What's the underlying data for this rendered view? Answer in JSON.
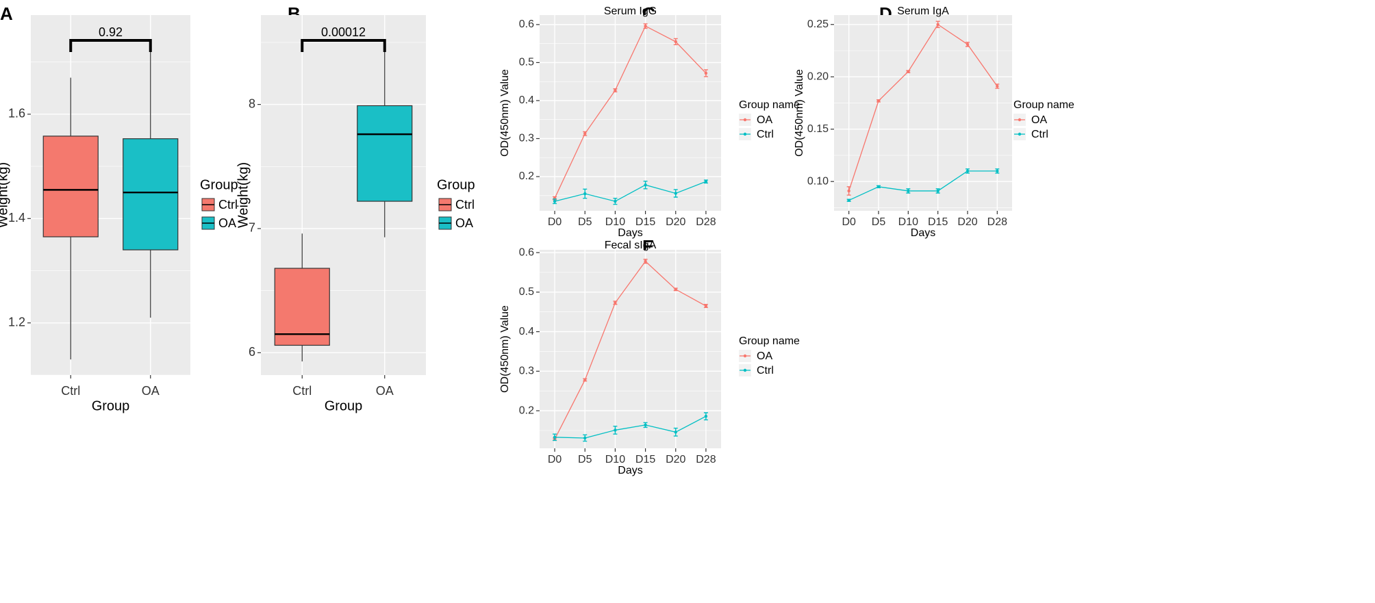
{
  "colors": {
    "oa": "#F8766D",
    "ctrl": "#00BFC4",
    "ctrl_fill": "#1ABFC6",
    "oa_fill": "#F4796E",
    "panel_bg": "#EBEBEB",
    "grid": "#FFFFFF"
  },
  "chart_data": [
    {
      "panel": "A",
      "type": "box",
      "title": "",
      "xlabel": "Group",
      "ylabel": "Weight(kg)",
      "ylim": [
        1.1,
        1.79
      ],
      "yticks": [
        1.2,
        1.4,
        1.6
      ],
      "ytick_labels": [
        "1.2",
        "1.4",
        "1.6"
      ],
      "categories": [
        "Ctrl",
        "OA"
      ],
      "boxes": [
        {
          "group": "Ctrl",
          "min": 1.13,
          "q1": 1.365,
          "median": 1.455,
          "q3": 1.558,
          "max": 1.67,
          "color_key": "oa_fill"
        },
        {
          "group": "OA",
          "min": 1.21,
          "q1": 1.34,
          "median": 1.45,
          "q3": 1.553,
          "max": 1.73,
          "color_key": "ctrl_fill"
        }
      ],
      "pvalue": "0.92",
      "legend_title": "Group",
      "legend": [
        "Ctrl",
        "OA"
      ]
    },
    {
      "panel": "B",
      "type": "box",
      "title": "",
      "xlabel": "Group",
      "ylabel": "Weight(kg)",
      "ylim": [
        5.82,
        8.72
      ],
      "yticks": [
        6,
        7,
        8
      ],
      "ytick_labels": [
        "6",
        "7",
        "8"
      ],
      "categories": [
        "Ctrl",
        "OA"
      ],
      "boxes": [
        {
          "group": "Ctrl",
          "min": 5.93,
          "q1": 6.06,
          "median": 6.15,
          "q3": 6.68,
          "max": 6.96,
          "color_key": "oa_fill"
        },
        {
          "group": "OA",
          "min": 6.93,
          "q1": 7.22,
          "median": 7.76,
          "q3": 7.99,
          "max": 8.48,
          "color_key": "ctrl_fill"
        }
      ],
      "pvalue": "0.00012",
      "legend_title": "Group",
      "legend": [
        "Ctrl",
        "OA"
      ]
    },
    {
      "panel": "C",
      "type": "line",
      "title": "Serum  IgG",
      "xlabel": "Days",
      "ylabel": "OD(450nm) Value",
      "categories": [
        "D0",
        "D5",
        "D10",
        "D15",
        "D20",
        "D28"
      ],
      "ylim": [
        0.11,
        0.625
      ],
      "yticks": [
        0.2,
        0.3,
        0.4,
        0.5,
        0.6
      ],
      "ytick_labels": [
        "0.2",
        "0.3",
        "0.4",
        "0.5",
        "0.6"
      ],
      "legend_title": "Group name",
      "series": [
        {
          "name": "OA",
          "color_key": "oa",
          "values": [
            0.143,
            0.313,
            0.427,
            0.596,
            0.555,
            0.472
          ],
          "errors": [
            0.004,
            0.005,
            0.004,
            0.006,
            0.008,
            0.009
          ]
        },
        {
          "name": "Ctrl",
          "color_key": "ctrl",
          "values": [
            0.135,
            0.155,
            0.135,
            0.178,
            0.156,
            0.187
          ],
          "errors": [
            0.006,
            0.012,
            0.008,
            0.01,
            0.01,
            0.004
          ]
        }
      ]
    },
    {
      "panel": "D",
      "type": "line",
      "title": "Serum  IgA",
      "xlabel": "Days",
      "ylabel": "OD(450nm) Value",
      "categories": [
        "D0",
        "D5",
        "D10",
        "D15",
        "D20",
        "D28"
      ],
      "ylim": [
        0.072,
        0.259
      ],
      "yticks": [
        0.1,
        0.15,
        0.2,
        0.25
      ],
      "ytick_labels": [
        "0.10",
        "0.15",
        "0.20",
        "0.25"
      ],
      "legend_title": "Group name",
      "series": [
        {
          "name": "OA",
          "color_key": "oa",
          "values": [
            0.091,
            0.177,
            0.205,
            0.25,
            0.231,
            0.191
          ],
          "errors": [
            0.004,
            0.001,
            0.001,
            0.003,
            0.002,
            0.002
          ]
        },
        {
          "name": "Ctrl",
          "color_key": "ctrl",
          "values": [
            0.082,
            0.095,
            0.091,
            0.091,
            0.11,
            0.11
          ],
          "errors": [
            0.001,
            0.001,
            0.002,
            0.002,
            0.002,
            0.002
          ]
        }
      ]
    },
    {
      "panel": "E",
      "type": "line",
      "title": "Fecal  sIgA",
      "xlabel": "Days",
      "ylabel": "OD(450nm) Value",
      "categories": [
        "D0",
        "D5",
        "D10",
        "D15",
        "D20",
        "D28"
      ],
      "ylim": [
        0.105,
        0.607
      ],
      "yticks": [
        0.2,
        0.3,
        0.4,
        0.5,
        0.6
      ],
      "ytick_labels": [
        "0.2",
        "0.3",
        "0.4",
        "0.5",
        "0.6"
      ],
      "legend_title": "Group name",
      "series": [
        {
          "name": "OA",
          "color_key": "oa",
          "values": [
            0.128,
            0.278,
            0.473,
            0.578,
            0.507,
            0.465
          ],
          "errors": [
            0.003,
            0.003,
            0.004,
            0.005,
            0.003,
            0.004
          ]
        },
        {
          "name": "Ctrl",
          "color_key": "ctrl",
          "values": [
            0.133,
            0.131,
            0.151,
            0.164,
            0.146,
            0.186
          ],
          "errors": [
            0.008,
            0.008,
            0.01,
            0.006,
            0.01,
            0.009
          ]
        }
      ]
    }
  ]
}
